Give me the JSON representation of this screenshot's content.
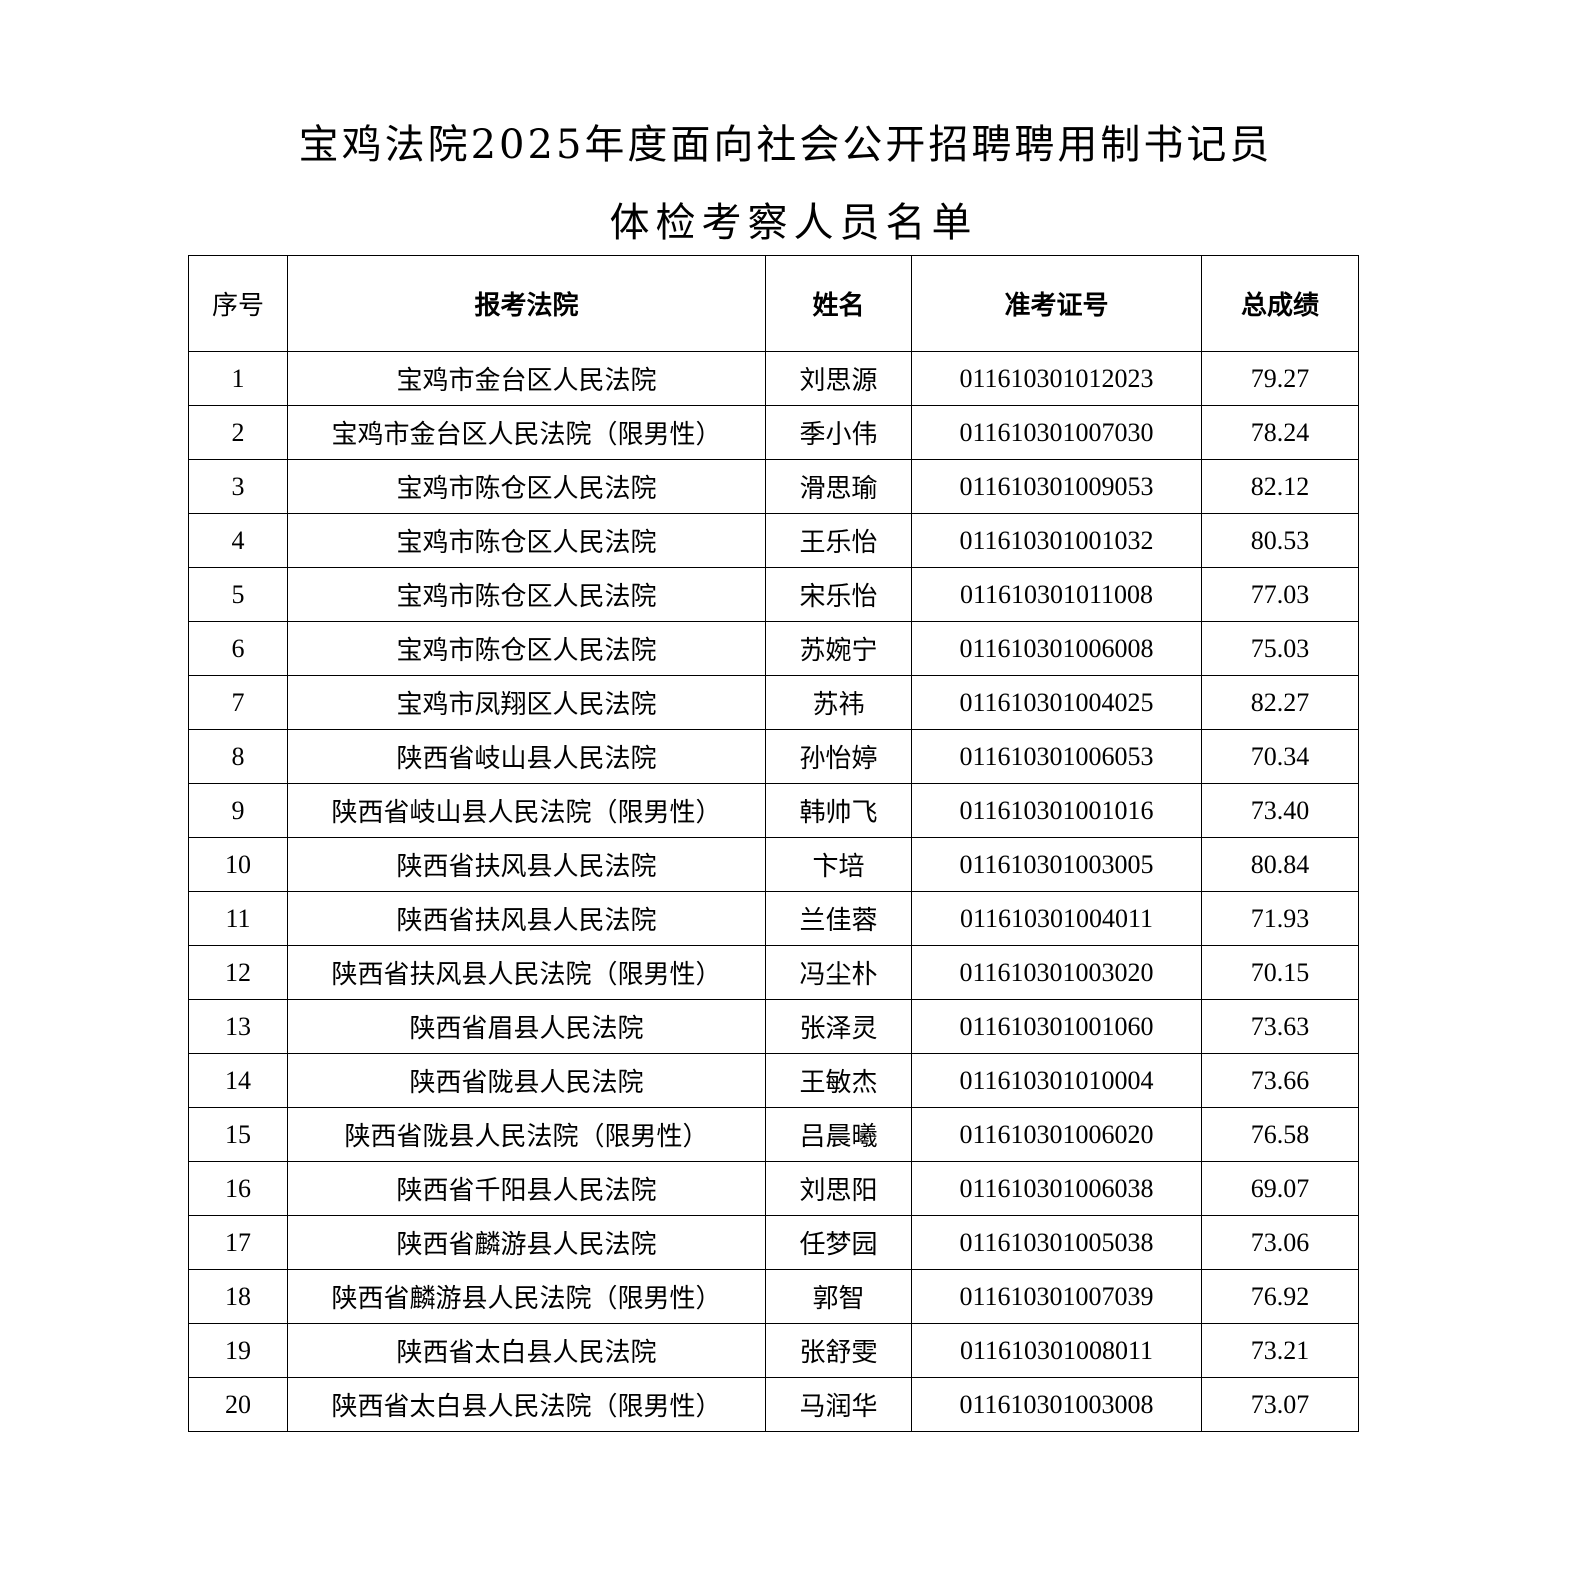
{
  "title_line1": "宝鸡法院2025年度面向社会公开招聘聘用制书记员",
  "title_line2": "体检考察人员名单",
  "columns": [
    "序号",
    "报考法院",
    "姓名",
    "准考证号",
    "总成绩"
  ],
  "rows": [
    [
      "1",
      "宝鸡市金台区人民法院",
      "刘思源",
      "011610301012023",
      "79.27"
    ],
    [
      "2",
      "宝鸡市金台区人民法院（限男性）",
      "季小伟",
      "011610301007030",
      "78.24"
    ],
    [
      "3",
      "宝鸡市陈仓区人民法院",
      "滑思瑜",
      "011610301009053",
      "82.12"
    ],
    [
      "4",
      "宝鸡市陈仓区人民法院",
      "王乐怡",
      "011610301001032",
      "80.53"
    ],
    [
      "5",
      "宝鸡市陈仓区人民法院",
      "宋乐怡",
      "011610301011008",
      "77.03"
    ],
    [
      "6",
      "宝鸡市陈仓区人民法院",
      "苏婉宁",
      "011610301006008",
      "75.03"
    ],
    [
      "7",
      "宝鸡市凤翔区人民法院",
      "苏祎",
      "011610301004025",
      "82.27"
    ],
    [
      "8",
      "陕西省岐山县人民法院",
      "孙怡婷",
      "011610301006053",
      "70.34"
    ],
    [
      "9",
      "陕西省岐山县人民法院（限男性）",
      "韩帅飞",
      "011610301001016",
      "73.40"
    ],
    [
      "10",
      "陕西省扶风县人民法院",
      "卞培",
      "011610301003005",
      "80.84"
    ],
    [
      "11",
      "陕西省扶风县人民法院",
      "兰佳蓉",
      "011610301004011",
      "71.93"
    ],
    [
      "12",
      "陕西省扶风县人民法院（限男性）",
      "冯尘朴",
      "011610301003020",
      "70.15"
    ],
    [
      "13",
      "陕西省眉县人民法院",
      "张泽灵",
      "011610301001060",
      "73.63"
    ],
    [
      "14",
      "陕西省陇县人民法院",
      "王敏杰",
      "011610301010004",
      "73.66"
    ],
    [
      "15",
      "陕西省陇县人民法院（限男性）",
      "吕晨曦",
      "011610301006020",
      "76.58"
    ],
    [
      "16",
      "陕西省千阳县人民法院",
      "刘思阳",
      "011610301006038",
      "69.07"
    ],
    [
      "17",
      "陕西省麟游县人民法院",
      "任梦园",
      "011610301005038",
      "73.06"
    ],
    [
      "18",
      "陕西省麟游县人民法院（限男性）",
      "郭智",
      "011610301007039",
      "76.92"
    ],
    [
      "19",
      "陕西省太白县人民法院",
      "张舒雯",
      "011610301008011",
      "73.21"
    ],
    [
      "20",
      "陕西省太白县人民法院（限男性）",
      "马润华",
      "011610301003008",
      "73.07"
    ]
  ]
}
